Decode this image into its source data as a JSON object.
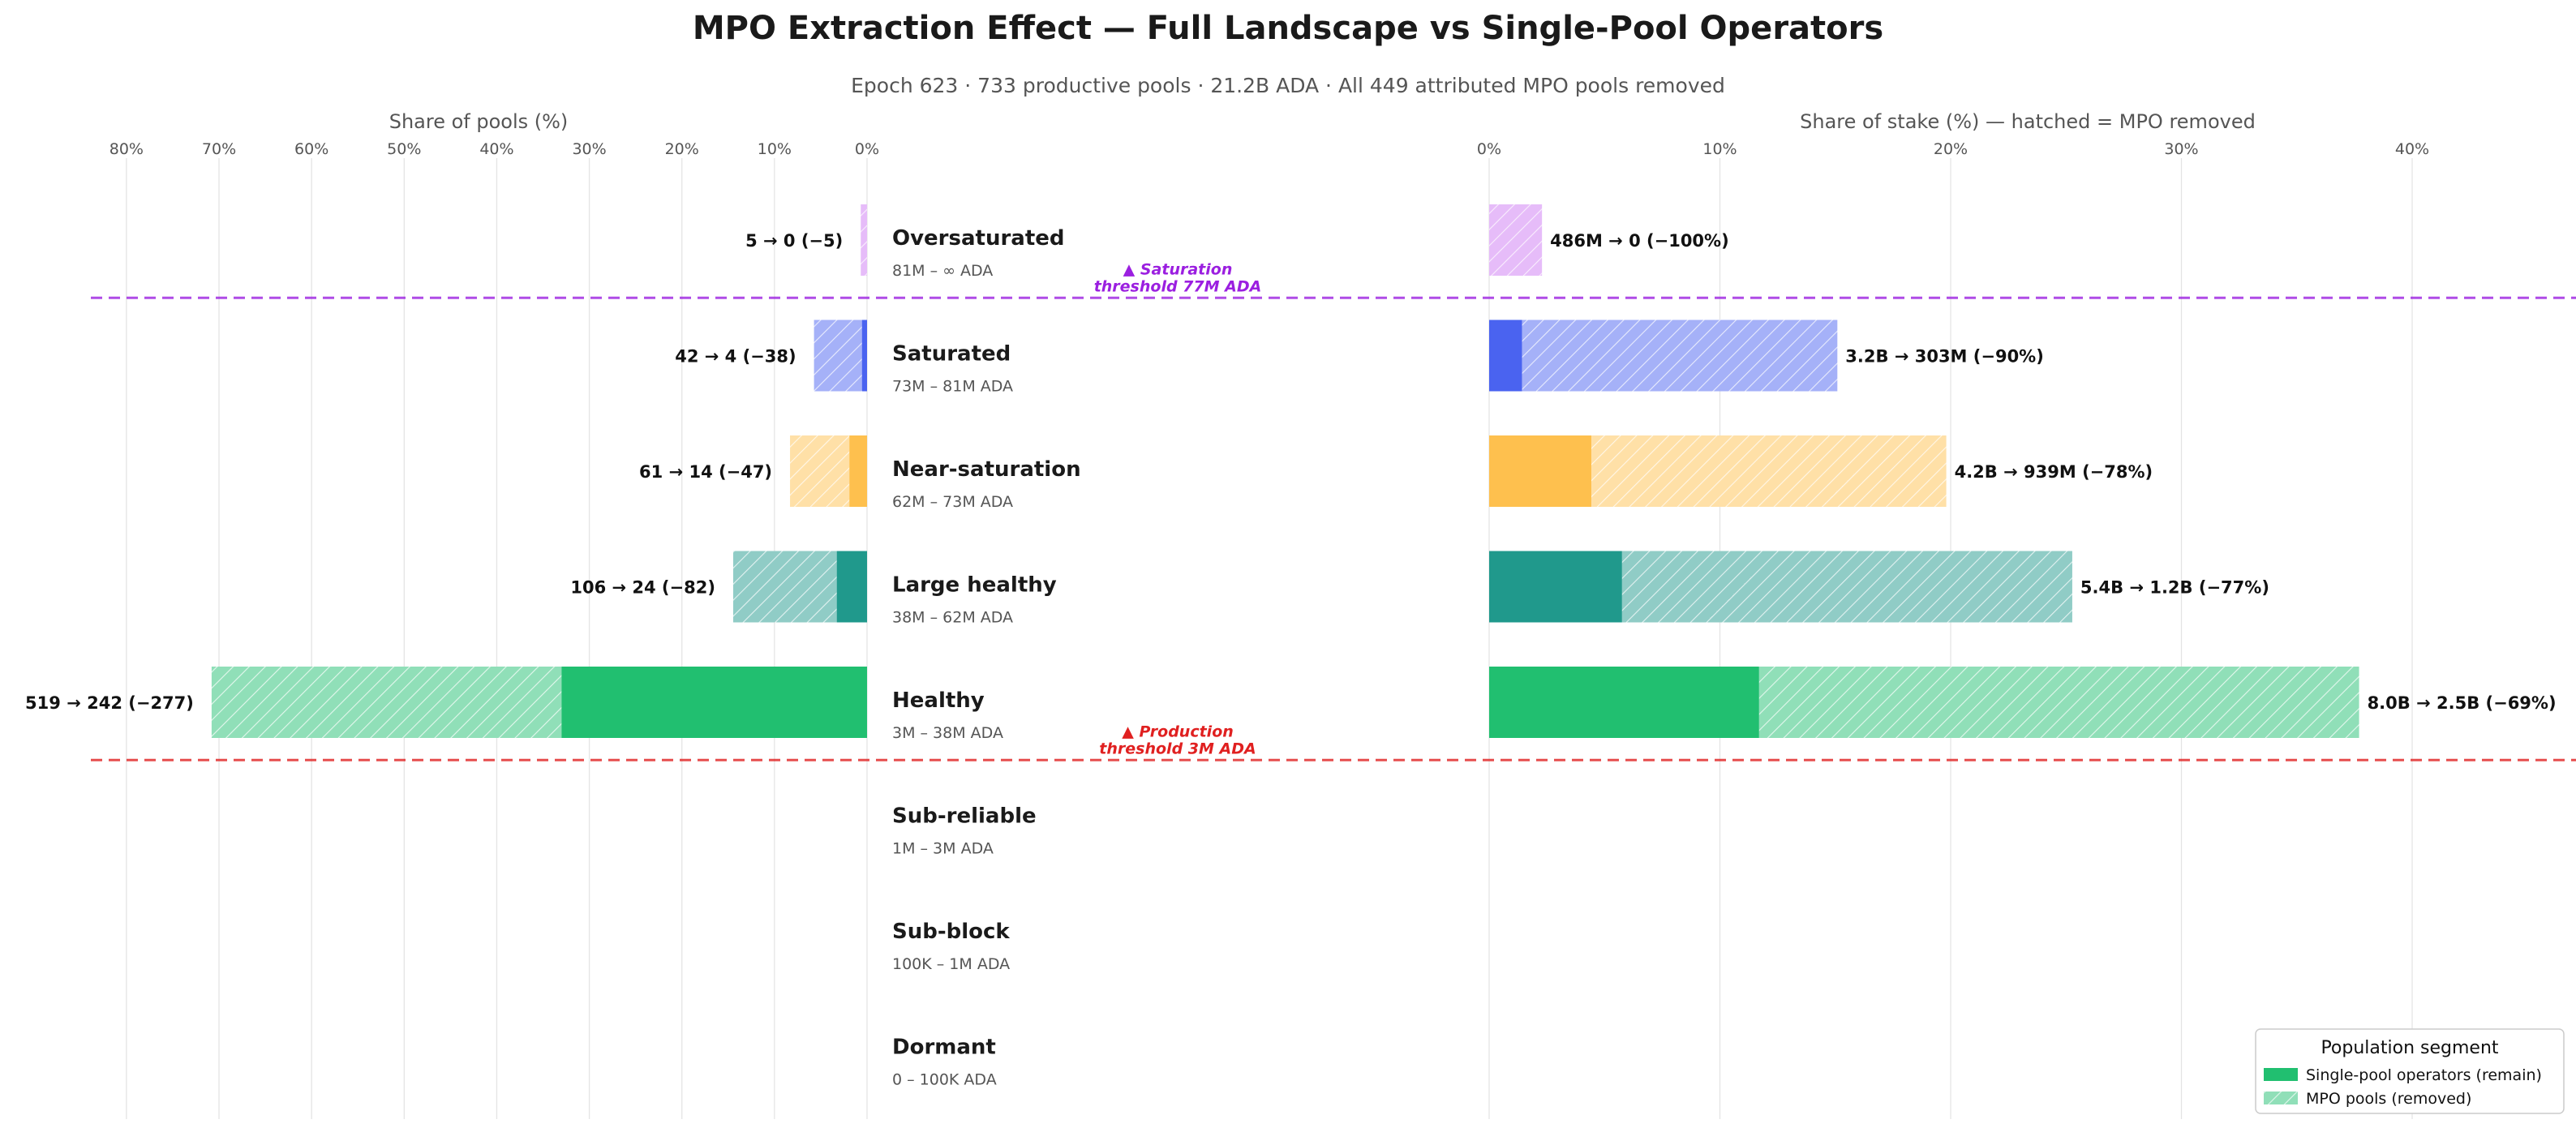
{
  "title": "MPO Extraction Effect — Full Landscape vs Single-Pool Operators",
  "subtitle": "Epoch 623  ·  733 productive pools  ·  21.2B ADA  ·  All 449 attributed MPO pools removed",
  "chart_data": {
    "type": "bar",
    "orientation": "horizontal",
    "left_panel": {
      "xlabel": "Share of pools (%)",
      "xlim": [
        0,
        80
      ],
      "direction": "reversed",
      "ticks": [
        "80%",
        "70%",
        "60%",
        "50%",
        "40%",
        "30%",
        "20%",
        "10%",
        "0%"
      ],
      "grid": true
    },
    "right_panel": {
      "xlabel": "Share of stake (%) — hatched = MPO removed",
      "xlim": [
        0,
        40
      ],
      "ticks": [
        "0%",
        "10%",
        "20%",
        "30%",
        "40%"
      ],
      "grid": true
    },
    "categories": [
      {
        "name": "Oversaturated",
        "range": "81M – ∞ ADA",
        "color": "#cc79f2",
        "pools_total_pct": 0.68,
        "pools_remain_pct": 0,
        "pool_label": "5 → 0  (−5)",
        "stake_total_pct": 2.29,
        "stake_remain_pct": 0,
        "stake_label": "486M → 0  (−100%)"
      },
      {
        "name": "Saturated",
        "range": "73M – 81M ADA",
        "color": "#4a63f0",
        "pools_total_pct": 5.73,
        "pools_remain_pct": 0.55,
        "pool_label": "42 → 4  (−38)",
        "stake_total_pct": 15.09,
        "stake_remain_pct": 1.43,
        "stake_label": "3.2B → 303M  (−90%)"
      },
      {
        "name": "Near-saturation",
        "range": "62M – 73M ADA",
        "color": "#fec04e",
        "pools_total_pct": 8.32,
        "pools_remain_pct": 1.91,
        "pool_label": "61 → 14  (−47)",
        "stake_total_pct": 19.81,
        "stake_remain_pct": 4.43,
        "stake_label": "4.2B → 939M  (−78%)"
      },
      {
        "name": "Large healthy",
        "range": "38M – 62M ADA",
        "color": "#20998c",
        "pools_total_pct": 14.46,
        "pools_remain_pct": 3.27,
        "pool_label": "106 → 24  (−82)",
        "stake_total_pct": 25.27,
        "stake_remain_pct": 5.76,
        "stake_label": "5.4B → 1.2B  (−77%)"
      },
      {
        "name": "Healthy",
        "range": "3M – 38M ADA",
        "color": "#21bf70",
        "pools_total_pct": 70.8,
        "pools_remain_pct": 33.0,
        "pool_label": "519 → 242  (−277)",
        "stake_total_pct": 37.7,
        "stake_remain_pct": 11.7,
        "stake_label": "8.0B → 2.5B  (−69%)"
      },
      {
        "name": "Sub-reliable",
        "range": "1M – 3M ADA",
        "color": "#888888",
        "pools_total_pct": 0,
        "pools_remain_pct": 0,
        "pool_label": "",
        "stake_total_pct": 0,
        "stake_remain_pct": 0,
        "stake_label": ""
      },
      {
        "name": "Sub-block",
        "range": "100K – 1M ADA",
        "color": "#888888",
        "pools_total_pct": 0,
        "pools_remain_pct": 0,
        "pool_label": "",
        "stake_total_pct": 0,
        "stake_remain_pct": 0,
        "stake_label": ""
      },
      {
        "name": "Dormant",
        "range": "0 – 100K ADA",
        "color": "#888888",
        "pools_total_pct": 0,
        "pools_remain_pct": 0,
        "pool_label": "",
        "stake_total_pct": 0,
        "stake_remain_pct": 0,
        "stake_label": ""
      }
    ],
    "thresholds": [
      {
        "label_line1": "▲ Saturation",
        "label_line2": "threshold  77M ADA",
        "color": "#9b1fe0",
        "between": [
          "Oversaturated",
          "Saturated"
        ]
      },
      {
        "label_line1": "▲ Production",
        "label_line2": "threshold  3M ADA",
        "color": "#e02020",
        "between": [
          "Healthy",
          "Sub-reliable"
        ]
      }
    ],
    "legend": {
      "title": "Population segment",
      "placement": "bottom-right",
      "items": [
        {
          "label": "Single-pool operators (remain)",
          "style": "solid",
          "color": "#21bf70"
        },
        {
          "label": "MPO pools (removed)",
          "style": "hatched",
          "color": "#21bf70"
        }
      ]
    }
  }
}
